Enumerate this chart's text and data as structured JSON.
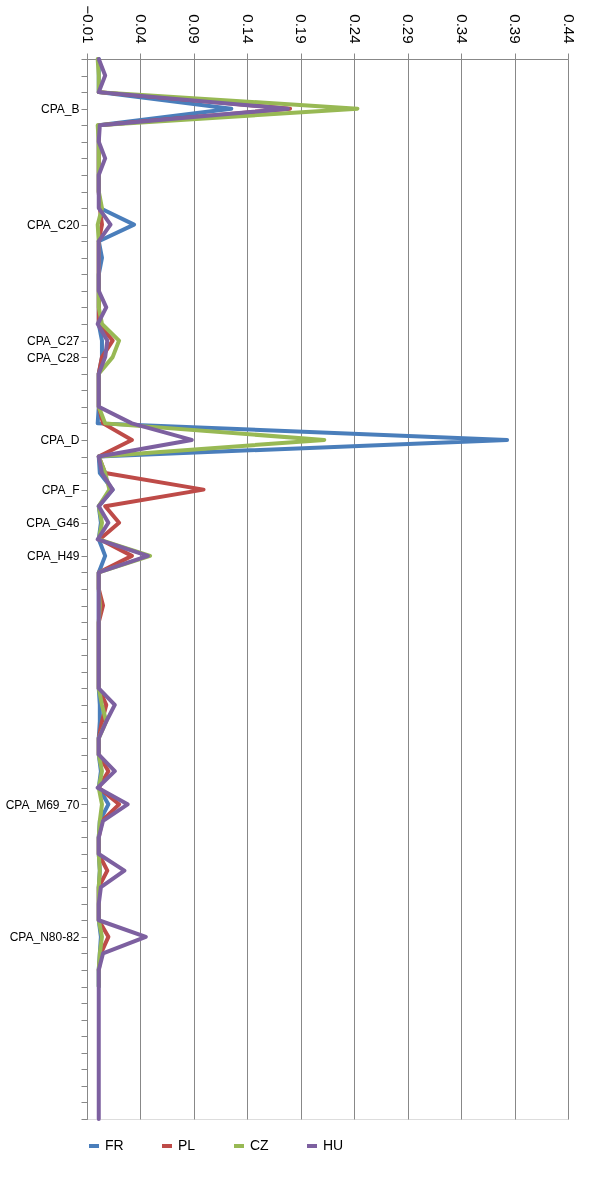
{
  "chart_data": {
    "type": "line",
    "orientation": "horizontal",
    "categories": [
      null,
      null,
      null,
      "CPA_B",
      null,
      null,
      null,
      null,
      null,
      null,
      "CPA_C20",
      null,
      null,
      null,
      null,
      null,
      null,
      "CPA_C27",
      "CPA_C28",
      null,
      null,
      null,
      null,
      "CPA_D",
      null,
      null,
      "CPA_F",
      null,
      "CPA_G46",
      null,
      "CPA_H49",
      null,
      null,
      null,
      null,
      null,
      null,
      null,
      null,
      null,
      null,
      null,
      null,
      null,
      null,
      "CPA_M69_70",
      null,
      null,
      null,
      null,
      null,
      null,
      null,
      "CPA_N80-82",
      null,
      null,
      null,
      null,
      null,
      null,
      null,
      null,
      null,
      null,
      null
    ],
    "series": [
      {
        "name": "FR",
        "color": "#4a7ebb",
        "values": [
          0.001,
          0.001,
          0.001,
          0.125,
          0.001,
          0.001,
          0.001,
          0.001,
          0.001,
          0.002,
          0.034,
          0.001,
          0.004,
          0.001,
          0.001,
          0.001,
          0.001,
          0.004,
          0.004,
          0.001,
          0.001,
          0.001,
          0.0,
          0.383,
          0.001,
          0.002,
          0.014,
          0.001,
          0.003,
          0.001,
          0.007,
          0.001,
          0.001,
          0.001,
          0.001,
          0.001,
          0.001,
          0.001,
          0.001,
          0.002,
          0.002,
          0.001,
          0.001,
          0.003,
          0.001,
          0.01,
          0.002,
          0.001,
          0.001,
          0.002,
          0.001,
          0.001,
          0.001,
          0.003,
          0.002,
          0.001,
          0.001,
          null,
          null,
          null,
          null,
          null,
          null,
          null,
          null
        ]
      },
      {
        "name": "PL",
        "color": "#be4b48",
        "values": [
          null,
          null,
          0.001,
          0.18,
          0.001,
          0.001,
          0.001,
          0.001,
          0.001,
          0.002,
          0.004,
          0.001,
          0.001,
          0.001,
          0.001,
          0.001,
          0.001,
          0.014,
          0.004,
          0.001,
          0.001,
          0.001,
          0.005,
          0.032,
          0.001,
          0.007,
          0.099,
          0.007,
          0.02,
          0.002,
          0.032,
          0.001,
          0.001,
          0.005,
          0.001,
          0.001,
          0.001,
          0.001,
          0.001,
          0.008,
          0.004,
          0.001,
          0.001,
          0.01,
          0.001,
          0.02,
          0.004,
          0.001,
          0.001,
          0.009,
          0.001,
          0.001,
          0.001,
          0.01,
          0.003,
          0.001,
          null,
          null,
          null,
          null,
          null,
          null,
          null,
          null,
          null
        ]
      },
      {
        "name": "CZ",
        "color": "#98b954",
        "values": [
          0.0,
          0.001,
          0.001,
          0.243,
          0.0,
          0.001,
          0.001,
          0.001,
          0.001,
          0.004,
          0.0,
          0.001,
          0.001,
          0.001,
          0.001,
          0.001,
          0.004,
          0.02,
          0.014,
          0.001,
          0.001,
          0.001,
          0.007,
          0.212,
          0.001,
          0.007,
          0.011,
          0.001,
          0.004,
          0.001,
          0.049,
          0.001,
          0.001,
          0.002,
          0.001,
          0.001,
          0.001,
          0.001,
          0.001,
          0.004,
          0.008,
          0.001,
          0.001,
          0.004,
          0.001,
          0.004,
          0.002,
          0.001,
          0.001,
          0.002,
          0.001,
          0.001,
          0.001,
          0.004,
          0.002,
          0.001,
          0.001,
          null,
          null,
          null,
          null,
          null,
          null,
          null,
          null
        ]
      },
      {
        "name": "HU",
        "color": "#7d60a0",
        "values": [
          0.001,
          0.007,
          0.001,
          0.178,
          0.002,
          0.001,
          0.007,
          0.001,
          0.001,
          0.001,
          0.012,
          0.001,
          0.001,
          0.001,
          0.001,
          0.008,
          0.0,
          0.009,
          0.007,
          0.001,
          0.001,
          0.001,
          0.032,
          0.088,
          0.001,
          0.004,
          0.014,
          0.001,
          0.01,
          0.0,
          0.047,
          0.001,
          0.001,
          0.001,
          0.001,
          0.001,
          0.001,
          0.001,
          0.001,
          0.016,
          0.008,
          0.001,
          0.001,
          0.016,
          0.0,
          0.028,
          0.005,
          0.001,
          0.001,
          0.025,
          0.003,
          0.001,
          0.001,
          0.045,
          0.005,
          0.001,
          0.001,
          0.001,
          0.001,
          0.001,
          0.001,
          0.001,
          0.001,
          0.001,
          0.001
        ]
      }
    ],
    "xlim": [
      -0.01,
      0.44
    ],
    "xticks": [
      -0.01,
      0.04,
      0.09,
      0.14,
      0.19,
      0.24,
      0.29,
      0.34,
      0.39,
      0.44
    ],
    "grid": "x",
    "legend": "bottom",
    "marker": "none",
    "line_style": "solid"
  }
}
